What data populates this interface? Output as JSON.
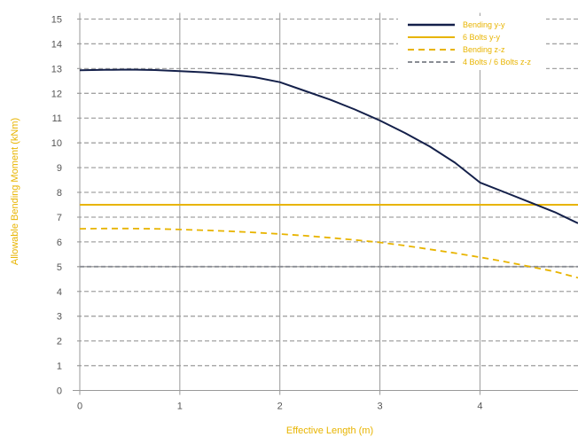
{
  "chart_data": {
    "type": "line",
    "title": "",
    "xlabel": "Effective Length (m)",
    "ylabel": "Allowable Bending Moment (kNm)",
    "xlim": [
      0,
      4.98
    ],
    "ylim": [
      0,
      15
    ],
    "x_ticks": [
      0,
      1,
      2,
      3,
      4
    ],
    "y_ticks": [
      0,
      1,
      2,
      3,
      4,
      5,
      6,
      7,
      8,
      9,
      10,
      11,
      12,
      13,
      14,
      15
    ],
    "grid": {
      "horizontal": "dashed",
      "vertical": "solid"
    },
    "legend_position": "top-right",
    "series": [
      {
        "name": "Bending y-y",
        "color": "#14204a",
        "style": "solid",
        "x": [
          0,
          0.25,
          0.5,
          0.75,
          1.0,
          1.25,
          1.5,
          1.75,
          2.0,
          2.25,
          2.5,
          2.75,
          3.0,
          3.25,
          3.5,
          3.75,
          4.0,
          4.25,
          4.5,
          4.75,
          4.98
        ],
        "y": [
          12.93,
          12.95,
          12.96,
          12.94,
          12.9,
          12.85,
          12.77,
          12.65,
          12.45,
          12.1,
          11.75,
          11.35,
          10.9,
          10.4,
          9.85,
          9.2,
          8.4,
          8.0,
          7.6,
          7.2,
          6.75
        ]
      },
      {
        "name": "6 Bolts y-y",
        "color": "#e8b400",
        "style": "solid",
        "x": [
          0,
          4.98
        ],
        "y": [
          7.5,
          7.5
        ]
      },
      {
        "name": "Bending z-z",
        "color": "#e8b400",
        "style": "dashed",
        "x": [
          0,
          0.25,
          0.5,
          0.75,
          1.0,
          1.25,
          1.5,
          1.75,
          2.0,
          2.25,
          2.5,
          2.75,
          3.0,
          3.25,
          3.5,
          3.75,
          4.0,
          4.25,
          4.5,
          4.75,
          4.98
        ],
        "y": [
          6.53,
          6.54,
          6.54,
          6.53,
          6.5,
          6.47,
          6.43,
          6.38,
          6.32,
          6.25,
          6.17,
          6.08,
          5.98,
          5.85,
          5.7,
          5.55,
          5.38,
          5.2,
          5.0,
          4.8,
          4.55
        ]
      },
      {
        "name": "4 Bolts / 6 Bolts z-z",
        "color": "#8a8d94",
        "style": "dashed",
        "x": [
          0,
          4.98
        ],
        "y": [
          5.0,
          5.0
        ]
      }
    ]
  }
}
